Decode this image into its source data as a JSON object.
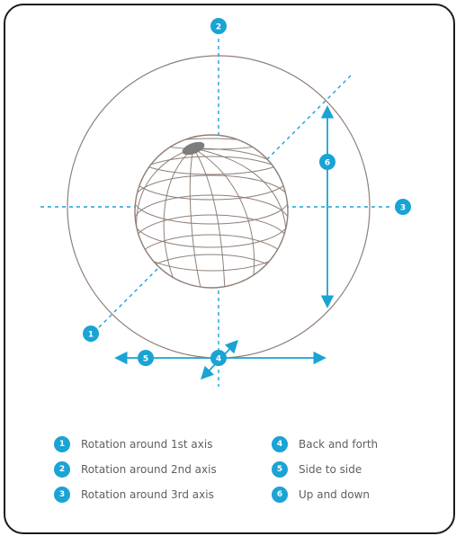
{
  "colors": {
    "accent": "#1aa3d4",
    "globe_lines": "#8f7f77",
    "pole_cap": "#7d7d7d",
    "text": "#5f5f5f",
    "frame": "#1b1b1b"
  },
  "axis_markers": [
    {
      "id": "1",
      "label": "1"
    },
    {
      "id": "2",
      "label": "2"
    },
    {
      "id": "3",
      "label": "3"
    },
    {
      "id": "4",
      "label": "4"
    },
    {
      "id": "5",
      "label": "5"
    },
    {
      "id": "6",
      "label": "6"
    }
  ],
  "legend": {
    "left": [
      {
        "number": "1",
        "label": "Rotation around 1st axis"
      },
      {
        "number": "2",
        "label": "Rotation around 2nd axis"
      },
      {
        "number": "3",
        "label": "Rotation around 3rd axis"
      }
    ],
    "right": [
      {
        "number": "4",
        "label": "Back and forth"
      },
      {
        "number": "5",
        "label": "Side to side"
      },
      {
        "number": "6",
        "label": "Up and down"
      }
    ]
  }
}
